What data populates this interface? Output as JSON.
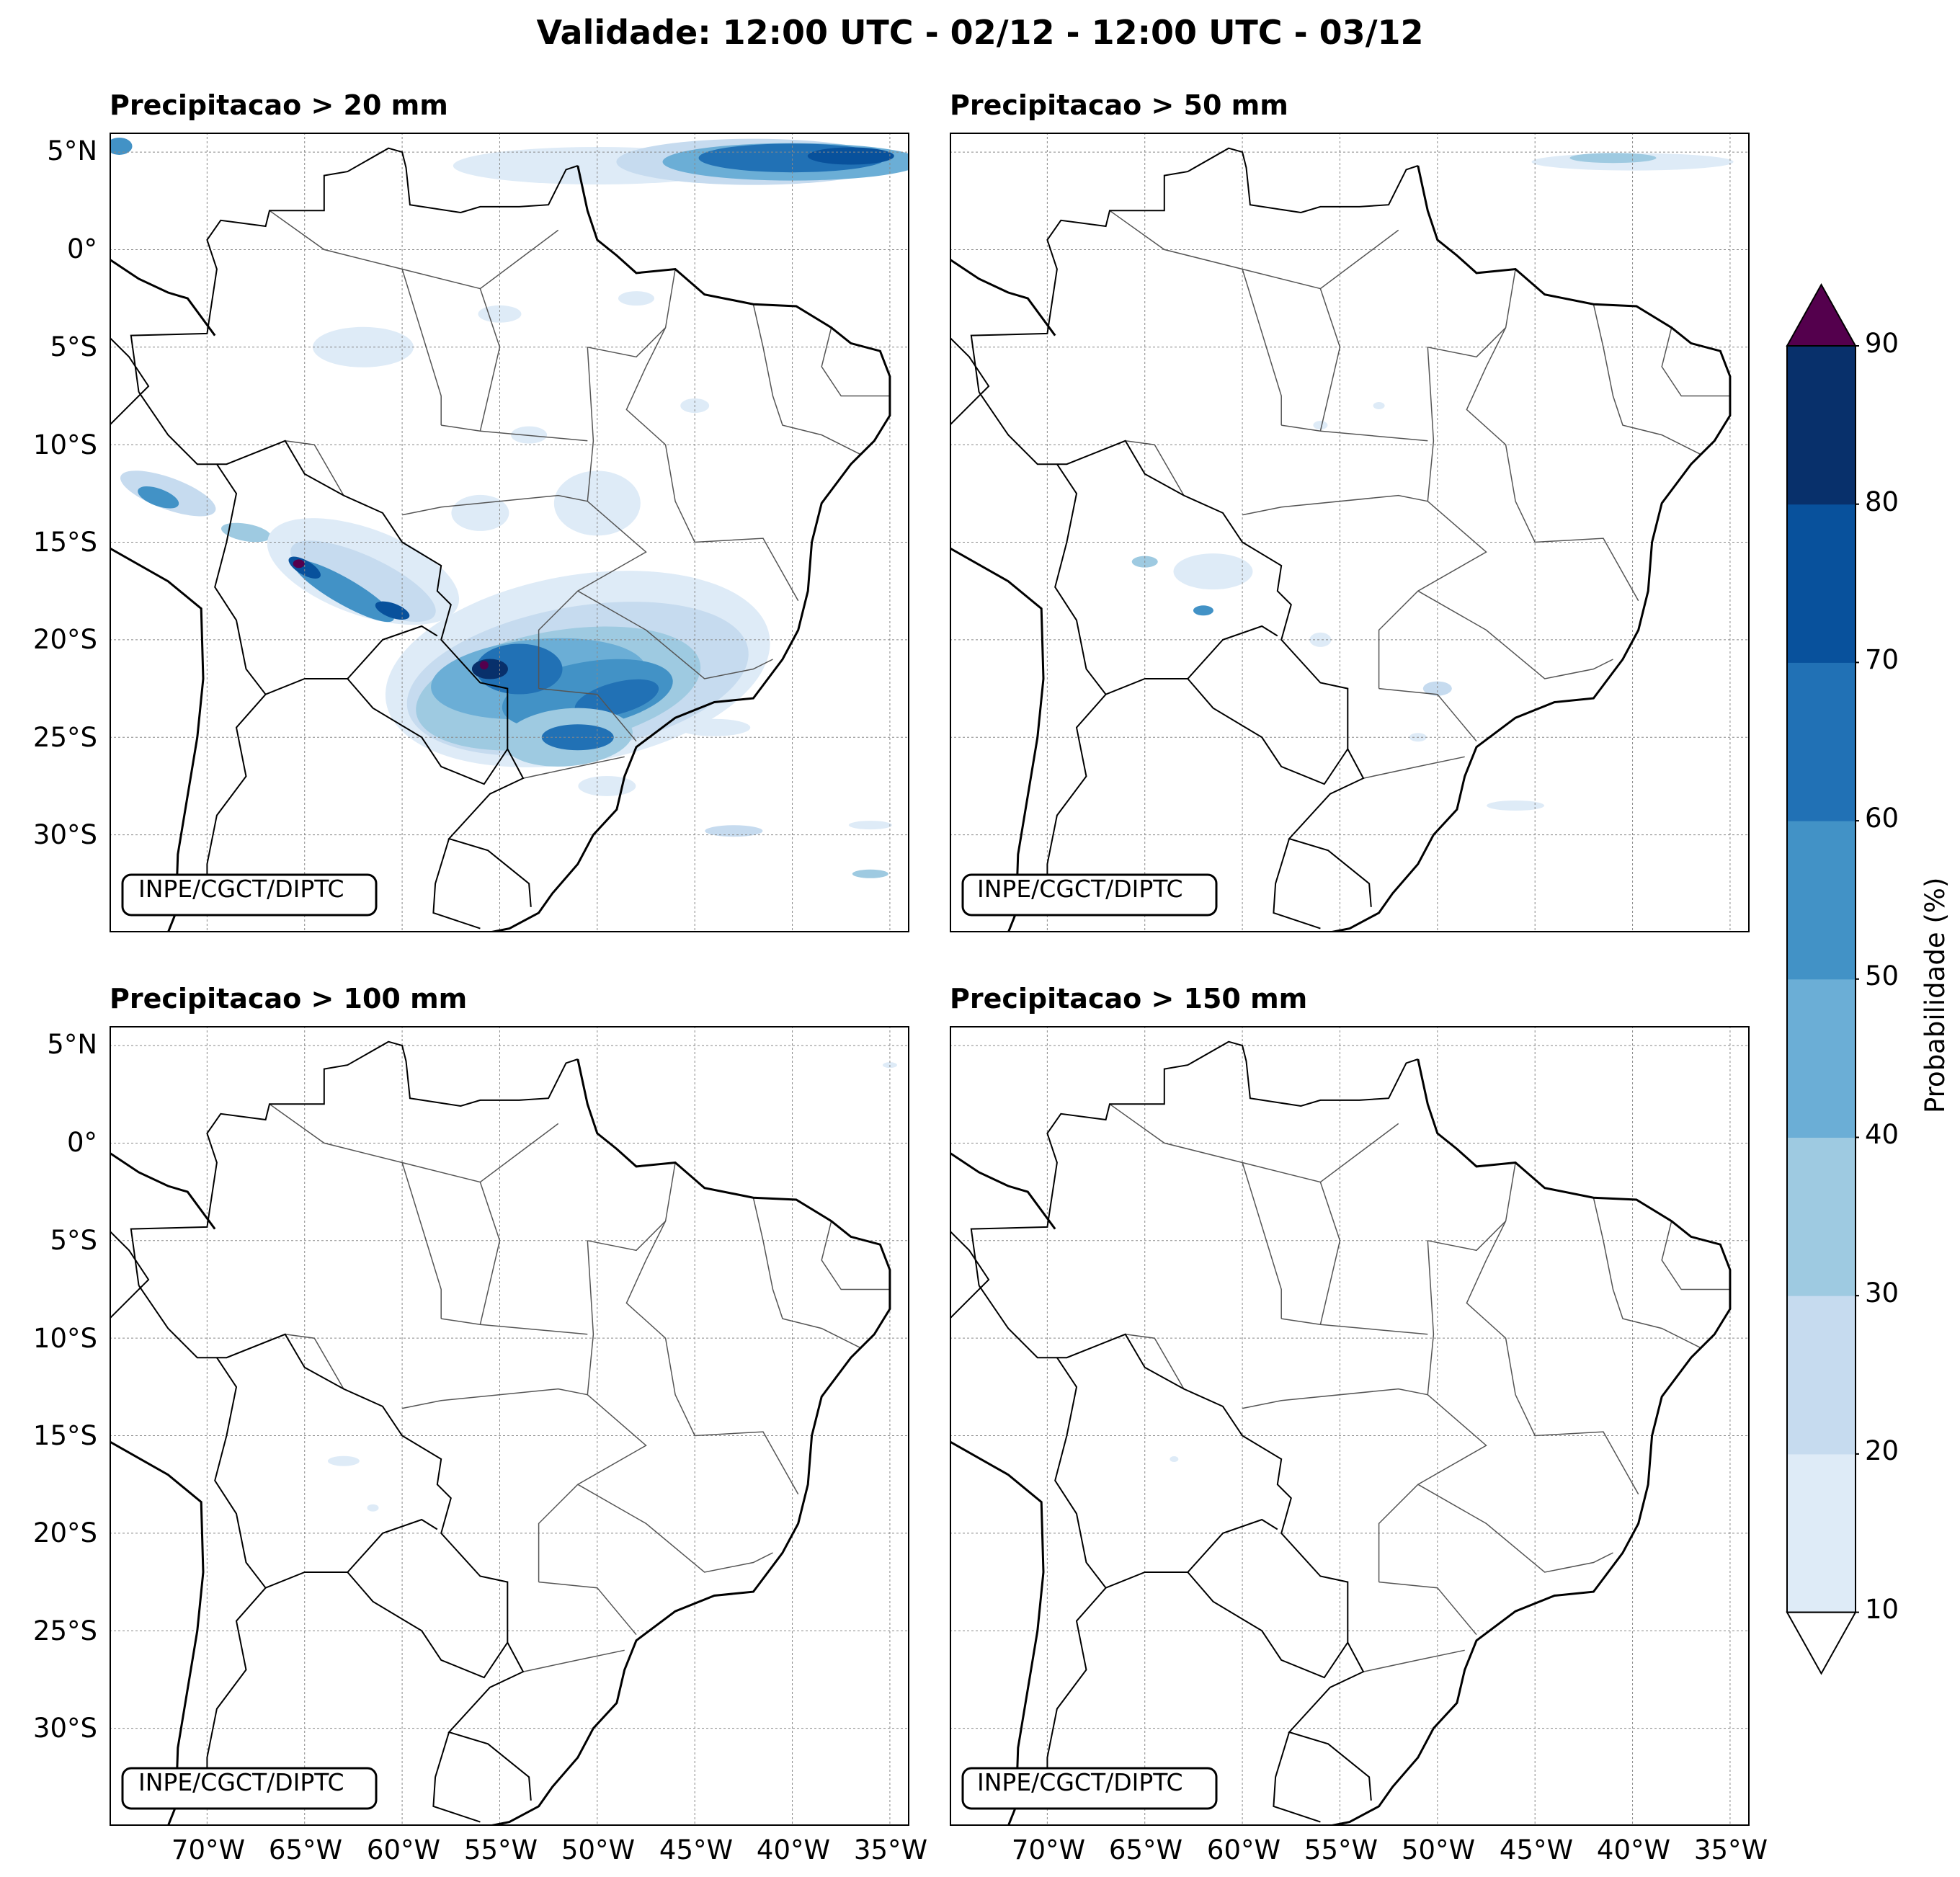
{
  "title": "Validade: 12:00 UTC - 02/12 - 12:00 UTC - 03/12",
  "credit": "INPE/CGCT/DIPTC",
  "lat_ticks": [
    "5°N",
    "0°",
    "5°S",
    "10°S",
    "15°S",
    "20°S",
    "25°S",
    "30°S"
  ],
  "lon_ticks": [
    "70°W",
    "65°W",
    "60°W",
    "55°W",
    "50°W",
    "45°W",
    "40°W",
    "35°W"
  ],
  "panels": [
    {
      "title": "Precipitacao > 20 mm"
    },
    {
      "title": "Precipitacao > 50 mm"
    },
    {
      "title": "Precipitacao > 100 mm"
    },
    {
      "title": "Precipitacao > 150 mm"
    }
  ],
  "colorbar": {
    "label": "Probabilidade (%)",
    "ticks": [
      "10",
      "20",
      "30",
      "40",
      "50",
      "60",
      "70",
      "80",
      "90"
    ],
    "colors": [
      "#deebf7",
      "#c6dbef",
      "#9ecae1",
      "#6baed6",
      "#4292c6",
      "#2171b5",
      "#08519c",
      "#08306b"
    ],
    "over_color": "#54004d",
    "under_color": "#ffffff"
  },
  "map_extent": {
    "lon": [
      -75,
      -34
    ],
    "lat": [
      -35,
      6
    ]
  }
}
